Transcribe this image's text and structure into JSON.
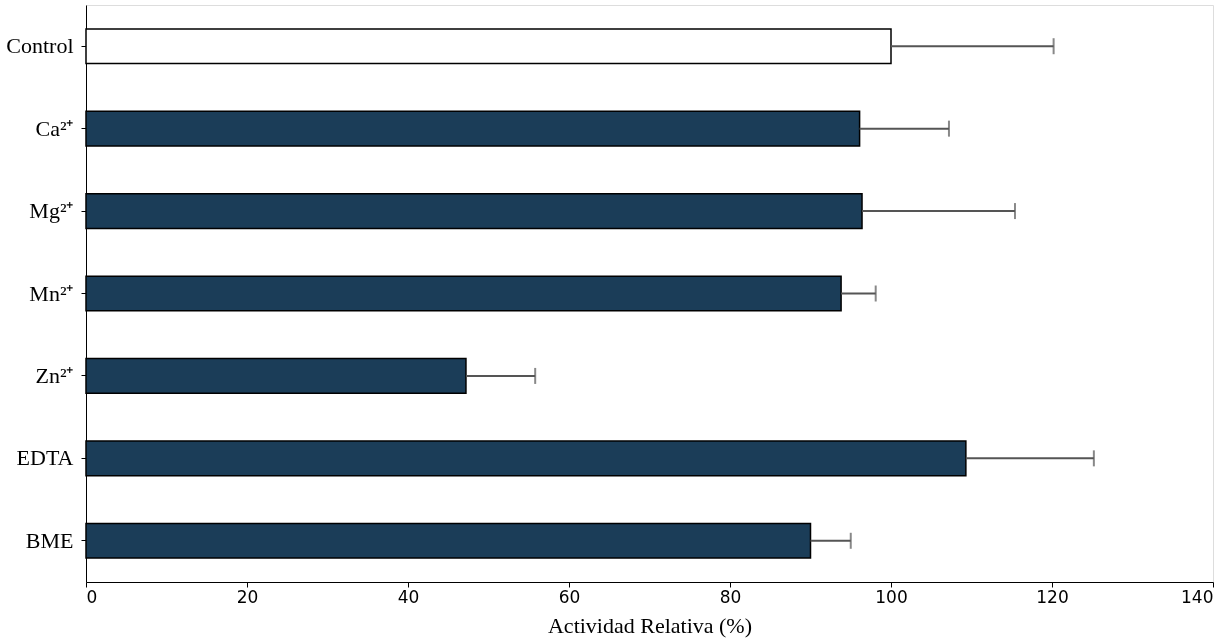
{
  "chart_data": {
    "type": "bar",
    "orientation": "horizontal",
    "xlabel": "Actividad Relativa (%)",
    "categories": [
      "Control",
      "Ca²⁺",
      "Mg²⁺",
      "Mn²⁺",
      "Zn²⁺",
      "EDTA",
      "BME"
    ],
    "values": [
      100,
      96.1,
      96.4,
      93.8,
      47.2,
      109.3,
      90.0
    ],
    "colors": [
      "#ffffff",
      "#1b3d58",
      "#1b3d58",
      "#1b3d58",
      "#1b3d58",
      "#1b3d58",
      "#1b3d58"
    ],
    "errors": [
      [
        100,
        120.2
      ],
      [
        96.1,
        107.2
      ],
      [
        96.4,
        115.4
      ],
      [
        93.8,
        98.1
      ],
      [
        47.2,
        55.8
      ],
      [
        109.3,
        125.2
      ],
      [
        90.0,
        95.0
      ]
    ],
    "xlim": [
      0,
      140
    ],
    "xticks": [
      0,
      20,
      40,
      60,
      80,
      100,
      120,
      140
    ],
    "grid": false
  }
}
